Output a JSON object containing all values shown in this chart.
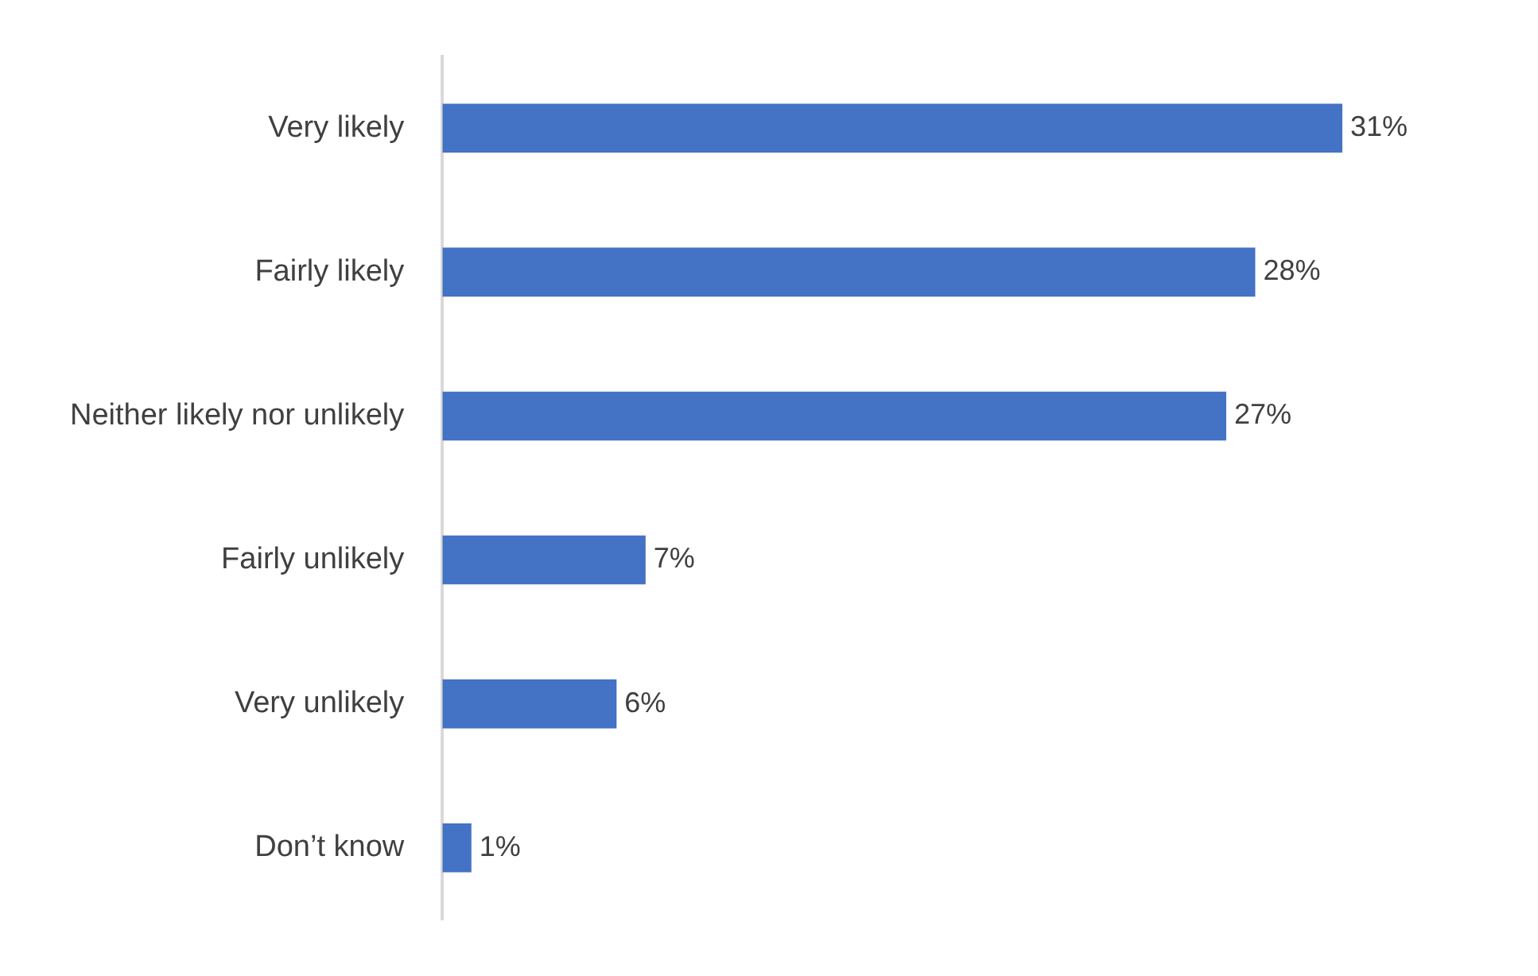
{
  "chart_data": {
    "type": "bar",
    "orientation": "horizontal",
    "categories": [
      "Very likely",
      "Fairly likely",
      "Neither likely nor unlikely",
      "Fairly unlikely",
      "Very unlikely",
      "Don’t know"
    ],
    "values": [
      31,
      28,
      27,
      7,
      6,
      1
    ],
    "value_labels": [
      "31%",
      "28%",
      "27%",
      "7%",
      "6%",
      "1%"
    ],
    "color": "#4472c4",
    "grid": false,
    "legend": false,
    "tick_labels": "y"
  }
}
